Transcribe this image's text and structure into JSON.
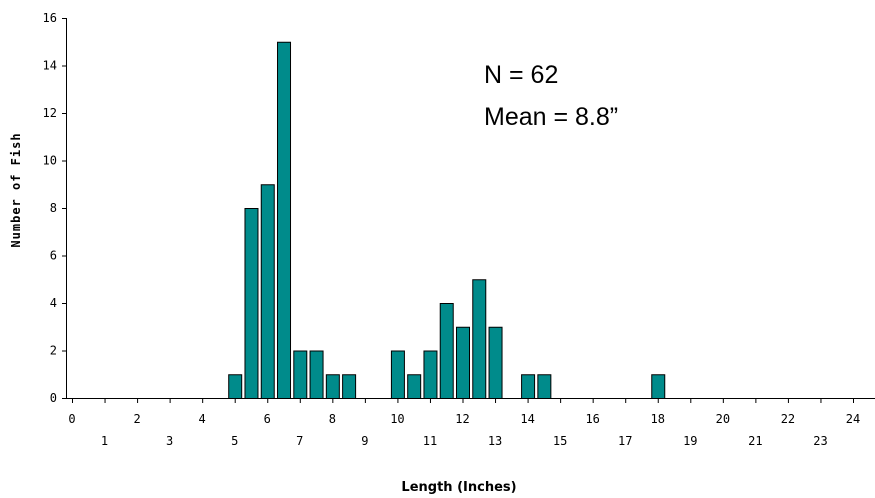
{
  "chart_data": {
    "type": "bar",
    "title": "",
    "xlabel": "Length (Inches)",
    "ylabel": "Number of Fish",
    "xlim": [
      0,
      24
    ],
    "ylim": [
      0,
      16
    ],
    "bar_color": "#008b8b",
    "x_ticks_upper": [
      "0",
      "2",
      "4",
      "6",
      "8",
      "10",
      "12",
      "14",
      "16",
      "18",
      "20",
      "22",
      "24"
    ],
    "x_ticks_lower": [
      "1",
      "3",
      "5",
      "7",
      "9",
      "11",
      "13",
      "15",
      "17",
      "19",
      "21",
      "23"
    ],
    "y_ticks": [
      "0",
      "2",
      "4",
      "6",
      "8",
      "10",
      "12",
      "14",
      "16"
    ],
    "bars": [
      {
        "x": 5.0,
        "value": 1
      },
      {
        "x": 5.5,
        "value": 8
      },
      {
        "x": 6.0,
        "value": 9
      },
      {
        "x": 6.5,
        "value": 15
      },
      {
        "x": 7.0,
        "value": 2
      },
      {
        "x": 7.5,
        "value": 2
      },
      {
        "x": 8.0,
        "value": 1
      },
      {
        "x": 8.5,
        "value": 1
      },
      {
        "x": 10.0,
        "value": 2
      },
      {
        "x": 10.5,
        "value": 1
      },
      {
        "x": 11.0,
        "value": 2
      },
      {
        "x": 11.5,
        "value": 4
      },
      {
        "x": 12.0,
        "value": 3
      },
      {
        "x": 12.5,
        "value": 5
      },
      {
        "x": 13.0,
        "value": 3
      },
      {
        "x": 14.0,
        "value": 1
      },
      {
        "x": 14.5,
        "value": 1
      },
      {
        "x": 18.0,
        "value": 1
      }
    ],
    "annotations": [
      "N = 62",
      "Mean = 8.8”"
    ],
    "grid": false
  }
}
